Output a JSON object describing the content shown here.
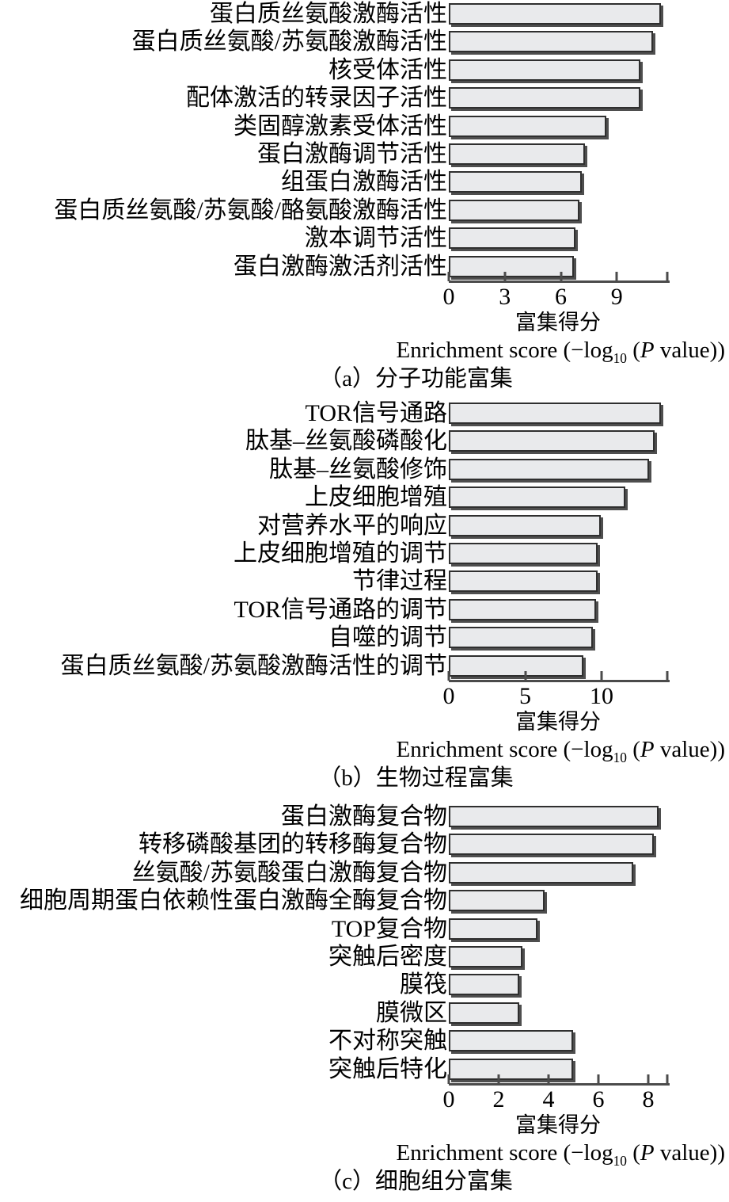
{
  "colors": {
    "bar_fill": "#e9eaec",
    "bar_border": "#2f2f2f",
    "axis_line": "#4b4b4b",
    "text": "#000000",
    "background": "#ffffff"
  },
  "chart_data": [
    {
      "type": "bar",
      "orientation": "horizontal",
      "caption": "（a）分子功能富集",
      "xlabel_zh": "富集得分",
      "xlabel_en_full": "Enrichment score (−log10 (P value))",
      "xlabel_en_pre": "Enrichment score (−log",
      "xlabel_en_sub": "10",
      "xlabel_en_mid": " (",
      "xlabel_en_var": "P",
      "xlabel_en_post": " value))",
      "xlim": [
        0,
        11.7
      ],
      "xticks": [
        0,
        3,
        6,
        9
      ],
      "grid": false,
      "categories": [
        "蛋白质丝氨酸激酶活性",
        "蛋白质丝氨酸/苏氨酸激酶活性",
        "核受体活性",
        "配体激活的转录因子活性",
        "类固醇激素受体活性",
        "蛋白激酶调节活性",
        "组蛋白激酶活性",
        "蛋白质丝氨酸/苏氨酸/酪氨酸激酶活性",
        "激本调节活性",
        "蛋白激酶激活剂活性"
      ],
      "values": [
        11.2,
        10.8,
        10.1,
        10.1,
        8.3,
        7.2,
        7.0,
        6.9,
        6.7,
        6.6
      ]
    },
    {
      "type": "bar",
      "orientation": "horizontal",
      "caption": "（b）生物过程富集",
      "xlabel_zh": "富集得分",
      "xlabel_en_full": "Enrichment score (−log10 (P value))",
      "xlabel_en_pre": "Enrichment score (−log",
      "xlabel_en_sub": "10",
      "xlabel_en_mid": " (",
      "xlabel_en_var": "P",
      "xlabel_en_post": " value))",
      "xlim": [
        0,
        14.3
      ],
      "xticks": [
        0,
        5,
        10
      ],
      "grid": false,
      "categories": [
        "TOR信号通路",
        "肽基–丝氨酸磷酸化",
        "肽基–丝氨酸修饰",
        "上皮细胞增殖",
        "对营养水平的响应",
        "上皮细胞增殖的调节",
        "节律过程",
        "TOR信号通路的调节",
        "自噬的调节",
        "蛋白质丝氨酸/苏氨酸激酶活性的调节"
      ],
      "values": [
        13.7,
        13.3,
        12.9,
        11.4,
        9.8,
        9.6,
        9.6,
        9.5,
        9.3,
        8.7
      ]
    },
    {
      "type": "bar",
      "orientation": "horizontal",
      "caption": "（c）细胞组分富集",
      "xlabel_zh": "富集得分",
      "xlabel_en_full": "Enrichment score (−log10 (P value))",
      "xlabel_en_pre": "Enrichment score (−log",
      "xlabel_en_sub": "10",
      "xlabel_en_mid": " (",
      "xlabel_en_var": "P",
      "xlabel_en_post": " value))",
      "xlim": [
        0,
        8.76
      ],
      "xticks": [
        0,
        2,
        4,
        6,
        8
      ],
      "grid": false,
      "categories": [
        "蛋白激酶复合物",
        "转移磷酸基团的转移酶复合物",
        "丝氨酸/苏氨酸蛋白激酶复合物",
        "细胞周期蛋白依赖性蛋白激酶全酶复合物",
        "TOP复合物",
        "突触后密度",
        "膜筏",
        "膜微区",
        "不对称突触",
        "突触后特化"
      ],
      "values": [
        8.3,
        8.1,
        7.3,
        3.8,
        3.5,
        2.9,
        2.8,
        2.8,
        4.9,
        4.9
      ]
    }
  ]
}
